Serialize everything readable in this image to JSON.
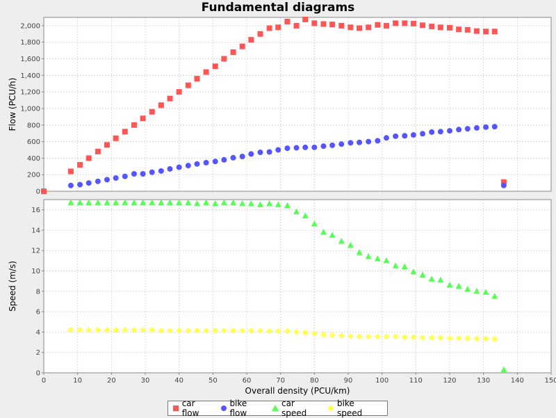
{
  "chart_data": {
    "type": "scatter",
    "title": "Fundamental diagrams",
    "xlabel": "Overall density (PCU/km)",
    "xlim": [
      0,
      150
    ],
    "x_ticks": [
      "0",
      "10",
      "20",
      "30",
      "40",
      "50",
      "60",
      "70",
      "80",
      "90",
      "100",
      "110",
      "120",
      "130",
      "140",
      "150"
    ],
    "legend_position": "bottom",
    "grid": true,
    "subplots": [
      {
        "ylabel": "Flow (PCU/h)",
        "ylim": [
          0,
          2100
        ],
        "y_ticks": [
          "0",
          "200",
          "400",
          "600",
          "800",
          "1,000",
          "1,200",
          "1,400",
          "1,600",
          "1,800",
          "2,000"
        ],
        "y_tick_values": [
          0,
          200,
          400,
          600,
          800,
          1000,
          1200,
          1400,
          1600,
          1800,
          2000
        ],
        "series": [
          {
            "name": "car flow",
            "color": "#ff5555",
            "marker": "square",
            "points": [
              [
                0,
                0
              ],
              [
                8,
                240
              ],
              [
                10.7,
                320
              ],
              [
                13.3,
                400
              ],
              [
                16,
                480
              ],
              [
                18.7,
                560
              ],
              [
                21.3,
                640
              ],
              [
                24,
                720
              ],
              [
                26.7,
                800
              ],
              [
                29.3,
                880
              ],
              [
                32,
                960
              ],
              [
                34.7,
                1040
              ],
              [
                37.3,
                1120
              ],
              [
                40,
                1200
              ],
              [
                42.7,
                1280
              ],
              [
                45.3,
                1360
              ],
              [
                48,
                1440
              ],
              [
                50.7,
                1510
              ],
              [
                53.3,
                1600
              ],
              [
                56,
                1680
              ],
              [
                58.7,
                1750
              ],
              [
                61.3,
                1830
              ],
              [
                64,
                1900
              ],
              [
                66.7,
                1970
              ],
              [
                69.3,
                1980
              ],
              [
                72,
                2050
              ],
              [
                74.7,
                2000
              ],
              [
                77.3,
                2075
              ],
              [
                80,
                2030
              ],
              [
                82.7,
                2020
              ],
              [
                85.3,
                2015
              ],
              [
                88,
                2000
              ],
              [
                90.7,
                1980
              ],
              [
                93.3,
                1970
              ],
              [
                96,
                1980
              ],
              [
                98.7,
                2010
              ],
              [
                101.3,
                2000
              ],
              [
                104,
                2030
              ],
              [
                106.7,
                2030
              ],
              [
                109.3,
                2025
              ],
              [
                112,
                2005
              ],
              [
                114.7,
                1990
              ],
              [
                117.3,
                1980
              ],
              [
                120,
                1975
              ],
              [
                122.7,
                1955
              ],
              [
                125.3,
                1950
              ],
              [
                128,
                1935
              ],
              [
                130.7,
                1930
              ],
              [
                133.3,
                1930
              ],
              [
                136,
                110
              ]
            ]
          },
          {
            "name": "bike flow",
            "color": "#5555ff",
            "marker": "circle",
            "points": [
              [
                8,
                70
              ],
              [
                10.7,
                80
              ],
              [
                13.3,
                100
              ],
              [
                16,
                120
              ],
              [
                18.7,
                140
              ],
              [
                21.3,
                160
              ],
              [
                24,
                180
              ],
              [
                26.7,
                210
              ],
              [
                29.3,
                210
              ],
              [
                32,
                230
              ],
              [
                34.7,
                245
              ],
              [
                37.3,
                270
              ],
              [
                40,
                290
              ],
              [
                42.7,
                310
              ],
              [
                45.3,
                330
              ],
              [
                48,
                345
              ],
              [
                50.7,
                360
              ],
              [
                53.3,
                380
              ],
              [
                56,
                405
              ],
              [
                58.7,
                420
              ],
              [
                61.3,
                450
              ],
              [
                64,
                470
              ],
              [
                66.7,
                475
              ],
              [
                69.3,
                500
              ],
              [
                72,
                520
              ],
              [
                74.7,
                525
              ],
              [
                77.3,
                530
              ],
              [
                80,
                530
              ],
              [
                82.7,
                545
              ],
              [
                85.3,
                555
              ],
              [
                88,
                570
              ],
              [
                90.7,
                585
              ],
              [
                93.3,
                590
              ],
              [
                96,
                600
              ],
              [
                98.7,
                610
              ],
              [
                101.3,
                645
              ],
              [
                104,
                665
              ],
              [
                106.7,
                670
              ],
              [
                109.3,
                680
              ],
              [
                112,
                695
              ],
              [
                114.7,
                715
              ],
              [
                117.3,
                720
              ],
              [
                120,
                730
              ],
              [
                122.7,
                745
              ],
              [
                125.3,
                755
              ],
              [
                128,
                765
              ],
              [
                130.7,
                775
              ],
              [
                133.3,
                780
              ],
              [
                136,
                70
              ]
            ]
          }
        ]
      },
      {
        "ylabel": "Speed (m/s)",
        "ylim": [
          0,
          17
        ],
        "y_ticks": [
          "0",
          "2",
          "4",
          "6",
          "8",
          "10",
          "12",
          "14",
          "16"
        ],
        "y_tick_values": [
          0,
          2,
          4,
          6,
          8,
          10,
          12,
          14,
          16
        ],
        "series": [
          {
            "name": "car speed",
            "color": "#55ff55",
            "marker": "triangle",
            "points": [
              [
                8,
                16.7
              ],
              [
                10.7,
                16.7
              ],
              [
                13.3,
                16.7
              ],
              [
                16,
                16.7
              ],
              [
                18.7,
                16.7
              ],
              [
                21.3,
                16.7
              ],
              [
                24,
                16.7
              ],
              [
                26.7,
                16.7
              ],
              [
                29.3,
                16.7
              ],
              [
                32,
                16.7
              ],
              [
                34.7,
                16.7
              ],
              [
                37.3,
                16.7
              ],
              [
                40,
                16.7
              ],
              [
                42.7,
                16.7
              ],
              [
                45.3,
                16.6
              ],
              [
                48,
                16.7
              ],
              [
                50.7,
                16.6
              ],
              [
                53.3,
                16.7
              ],
              [
                56,
                16.7
              ],
              [
                58.7,
                16.6
              ],
              [
                61.3,
                16.6
              ],
              [
                64,
                16.5
              ],
              [
                66.7,
                16.6
              ],
              [
                69.3,
                16.5
              ],
              [
                72,
                16.4
              ],
              [
                74.7,
                15.8
              ],
              [
                77.3,
                15.4
              ],
              [
                80,
                14.6
              ],
              [
                82.7,
                13.8
              ],
              [
                85.3,
                13.5
              ],
              [
                88,
                12.9
              ],
              [
                90.7,
                12.5
              ],
              [
                93.3,
                11.8
              ],
              [
                96,
                11.4
              ],
              [
                98.7,
                11.2
              ],
              [
                101.3,
                11.0
              ],
              [
                104,
                10.5
              ],
              [
                106.7,
                10.4
              ],
              [
                109.3,
                9.9
              ],
              [
                112,
                9.6
              ],
              [
                114.7,
                9.2
              ],
              [
                117.3,
                9.1
              ],
              [
                120,
                8.6
              ],
              [
                122.7,
                8.5
              ],
              [
                125.3,
                8.2
              ],
              [
                128,
                8.0
              ],
              [
                130.7,
                7.9
              ],
              [
                133.3,
                7.5
              ],
              [
                136,
                0.3
              ]
            ]
          },
          {
            "name": "bike speed",
            "color": "#ffff55",
            "marker": "diamond",
            "points": [
              [
                8,
                4.2
              ],
              [
                10.7,
                4.2
              ],
              [
                13.3,
                4.2
              ],
              [
                16,
                4.2
              ],
              [
                18.7,
                4.2
              ],
              [
                21.3,
                4.2
              ],
              [
                24,
                4.2
              ],
              [
                26.7,
                4.2
              ],
              [
                29.3,
                4.2
              ],
              [
                32,
                4.2
              ],
              [
                34.7,
                4.15
              ],
              [
                37.3,
                4.15
              ],
              [
                40,
                4.15
              ],
              [
                42.7,
                4.15
              ],
              [
                45.3,
                4.15
              ],
              [
                48,
                4.15
              ],
              [
                50.7,
                4.15
              ],
              [
                53.3,
                4.15
              ],
              [
                56,
                4.15
              ],
              [
                58.7,
                4.15
              ],
              [
                61.3,
                4.15
              ],
              [
                64,
                4.15
              ],
              [
                66.7,
                4.1
              ],
              [
                69.3,
                4.1
              ],
              [
                72,
                4.1
              ],
              [
                74.7,
                4.0
              ],
              [
                77.3,
                3.95
              ],
              [
                80,
                3.85
              ],
              [
                82.7,
                3.75
              ],
              [
                85.3,
                3.7
              ],
              [
                88,
                3.65
              ],
              [
                90.7,
                3.6
              ],
              [
                93.3,
                3.55
              ],
              [
                96,
                3.55
              ],
              [
                98.7,
                3.55
              ],
              [
                101.3,
                3.55
              ],
              [
                104,
                3.55
              ],
              [
                106.7,
                3.5
              ],
              [
                109.3,
                3.5
              ],
              [
                112,
                3.45
              ],
              [
                114.7,
                3.45
              ],
              [
                117.3,
                3.45
              ],
              [
                120,
                3.4
              ],
              [
                122.7,
                3.4
              ],
              [
                125.3,
                3.4
              ],
              [
                128,
                3.35
              ],
              [
                130.7,
                3.35
              ],
              [
                133.3,
                3.3
              ]
            ]
          }
        ]
      }
    ]
  }
}
